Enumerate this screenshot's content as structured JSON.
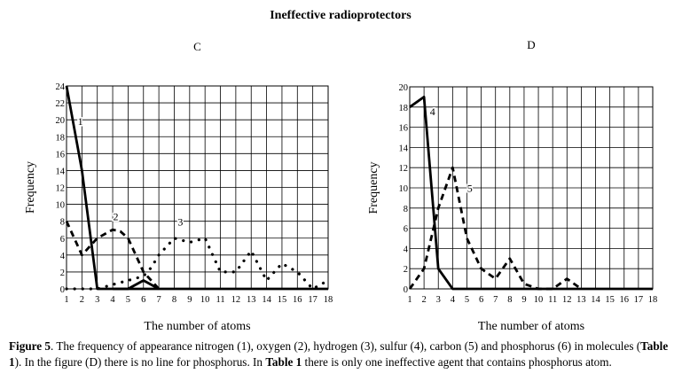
{
  "figure_title": "Ineffective radioprotectors",
  "caption": {
    "label": "Figure 5",
    "part1": ". The frequency of appearance nitrogen (1), oxygen (2), hydrogen (3), sulfur (4), carbon (5) and phosphorus (6) in molecules (",
    "table_ref_1": "Table 1",
    "part2": "). In the figure (D) there is no line for phosphorus. In ",
    "table_ref_2": "Table 1",
    "part3": " there is only one ineffective agent that contains phosphorus atom."
  },
  "chart_data": [
    {
      "type": "line",
      "panel_label": "C",
      "xlabel": "The number of atoms",
      "ylabel": "Frequency",
      "xlim": [
        1,
        18
      ],
      "ylim": [
        0,
        24
      ],
      "xticks": [
        1,
        2,
        3,
        4,
        5,
        6,
        7,
        8,
        9,
        10,
        11,
        12,
        13,
        14,
        15,
        16,
        17,
        18
      ],
      "yticks": [
        0,
        2,
        4,
        6,
        8,
        10,
        12,
        14,
        16,
        18,
        20,
        22,
        24
      ],
      "grid": true,
      "series": [
        {
          "name": "1",
          "style": "solid",
          "x": [
            1,
            2,
            3,
            4,
            5,
            6,
            7,
            18
          ],
          "y": [
            24,
            14,
            0,
            0,
            0,
            0,
            0,
            0
          ]
        },
        {
          "name": "2",
          "style": "dashed",
          "x": [
            1,
            2,
            3,
            4,
            4.5,
            5,
            6,
            7
          ],
          "y": [
            8,
            4,
            6,
            7,
            6.8,
            6,
            2,
            0
          ]
        },
        {
          "name": "3",
          "style": "dotted",
          "x": [
            1,
            2,
            3,
            4,
            5,
            6,
            6.5,
            7,
            8,
            9,
            10,
            11,
            12,
            13,
            14,
            15,
            16,
            17,
            18
          ],
          "y": [
            0,
            0,
            0,
            0.5,
            1,
            1.5,
            2.5,
            4,
            6,
            5.5,
            6,
            2,
            2,
            4.5,
            1,
            3,
            2,
            0,
            1
          ]
        },
        {
          "name": "6",
          "style": "solid",
          "x": [
            4,
            5,
            6,
            7
          ],
          "y": [
            0,
            0,
            1,
            0
          ]
        }
      ],
      "annotations": [
        {
          "text": "1",
          "x": 1.9,
          "y": 19.4
        },
        {
          "text": "2",
          "x": 4.2,
          "y": 8.1
        },
        {
          "text": "3",
          "x": 8.4,
          "y": 7.5
        }
      ]
    },
    {
      "type": "line",
      "panel_label": "D",
      "xlabel": "The number of atoms",
      "ylabel": "Frequency",
      "xlim": [
        1,
        18
      ],
      "ylim": [
        0,
        20
      ],
      "xticks": [
        1,
        2,
        3,
        4,
        5,
        6,
        7,
        8,
        9,
        10,
        11,
        12,
        13,
        14,
        15,
        16,
        17,
        18
      ],
      "yticks": [
        0,
        2,
        4,
        6,
        8,
        10,
        12,
        14,
        16,
        18,
        20
      ],
      "grid": true,
      "series": [
        {
          "name": "4",
          "style": "solid",
          "x": [
            1,
            2,
            3,
            4,
            5,
            18
          ],
          "y": [
            18,
            19,
            2,
            0,
            0,
            0
          ]
        },
        {
          "name": "5",
          "style": "dashed",
          "x": [
            1,
            2,
            3,
            4,
            5,
            6,
            7,
            8,
            9,
            10,
            11,
            12,
            13
          ],
          "y": [
            0,
            2,
            8,
            12,
            5,
            2,
            1,
            3,
            0.5,
            0,
            0,
            1,
            0
          ]
        }
      ],
      "annotations": [
        {
          "text": "4",
          "x": 2.6,
          "y": 17.2
        },
        {
          "text": "5",
          "x": 5.2,
          "y": 9.6
        }
      ]
    }
  ]
}
